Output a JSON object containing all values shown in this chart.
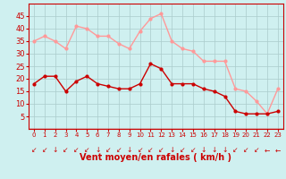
{
  "hours": [
    0,
    1,
    2,
    3,
    4,
    5,
    6,
    7,
    8,
    9,
    10,
    11,
    12,
    13,
    14,
    15,
    16,
    17,
    18,
    19,
    20,
    21,
    22,
    23
  ],
  "wind_avg": [
    18,
    21,
    21,
    15,
    19,
    21,
    18,
    17,
    16,
    16,
    18,
    26,
    24,
    18,
    18,
    18,
    16,
    15,
    13,
    7,
    6,
    6,
    6,
    7
  ],
  "wind_gust": [
    35,
    37,
    35,
    32,
    41,
    40,
    37,
    37,
    34,
    32,
    39,
    44,
    46,
    35,
    32,
    31,
    27,
    27,
    27,
    16,
    15,
    11,
    6,
    16
  ],
  "arrows": [
    "↙",
    "↙",
    "↓",
    "↙",
    "↙",
    "↙",
    "↓",
    "↙",
    "↙",
    "↓",
    "↙",
    "↙",
    "↙",
    "↓",
    "↙",
    "↙",
    "↓",
    "↓",
    "↓",
    "↙",
    "↙",
    "↙",
    "←",
    "←"
  ],
  "xlabel": "Vent moyen/en rafales ( km/h )",
  "ylim": [
    0,
    50
  ],
  "yticks": [
    5,
    10,
    15,
    20,
    25,
    30,
    35,
    40,
    45
  ],
  "xticks": [
    0,
    1,
    2,
    3,
    4,
    5,
    6,
    7,
    8,
    9,
    10,
    11,
    12,
    13,
    14,
    15,
    16,
    17,
    18,
    19,
    20,
    21,
    22,
    23
  ],
  "bg_color": "#cff0f0",
  "grid_color": "#aacccc",
  "avg_color": "#cc0000",
  "gust_color": "#ff9999",
  "marker_size": 2,
  "line_width": 1.0,
  "xlabel_color": "#cc0000",
  "xlabel_fontsize": 7,
  "ytick_fontsize": 6,
  "xtick_fontsize": 5
}
